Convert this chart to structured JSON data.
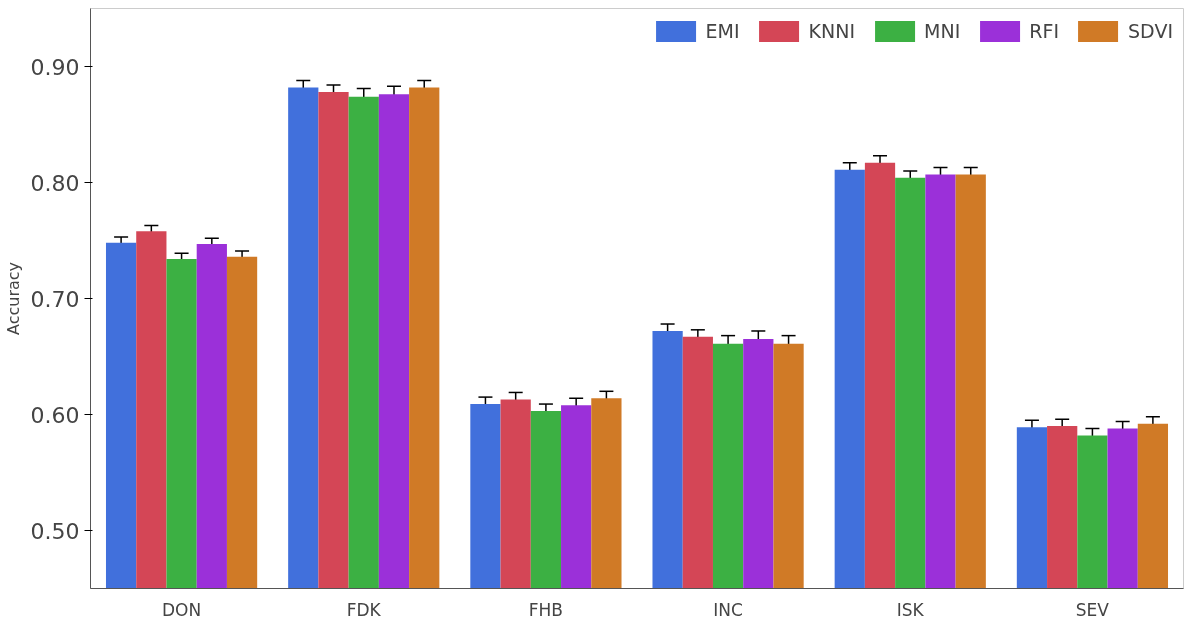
{
  "chart_data": {
    "type": "bar",
    "ylabel": "Accuracy",
    "categories": [
      "DON",
      "FDK",
      "FHB",
      "INC",
      "ISK",
      "SEV"
    ],
    "series": [
      {
        "name": "EMI",
        "color": "#4170dc",
        "values": [
          0.748,
          0.882,
          0.609,
          0.672,
          0.811,
          0.589
        ],
        "errors": [
          0.005,
          0.006,
          0.006,
          0.006,
          0.006,
          0.006
        ]
      },
      {
        "name": "KNNI",
        "color": "#d44656",
        "values": [
          0.758,
          0.878,
          0.613,
          0.667,
          0.817,
          0.59
        ],
        "errors": [
          0.005,
          0.006,
          0.006,
          0.006,
          0.006,
          0.006
        ]
      },
      {
        "name": "MNI",
        "color": "#3cb043",
        "values": [
          0.734,
          0.874,
          0.603,
          0.661,
          0.804,
          0.582
        ],
        "errors": [
          0.005,
          0.007,
          0.006,
          0.007,
          0.006,
          0.006
        ]
      },
      {
        "name": "RFI",
        "color": "#9b30d9",
        "values": [
          0.747,
          0.876,
          0.608,
          0.665,
          0.807,
          0.588
        ],
        "errors": [
          0.005,
          0.007,
          0.006,
          0.007,
          0.006,
          0.006
        ]
      },
      {
        "name": "SDVI",
        "color": "#d07a26",
        "values": [
          0.736,
          0.882,
          0.614,
          0.661,
          0.807,
          0.592
        ],
        "errors": [
          0.005,
          0.006,
          0.006,
          0.007,
          0.006,
          0.006
        ]
      }
    ],
    "ylim": [
      0.45,
      0.95
    ],
    "yticks": [
      {
        "value": 0.5,
        "label": "0.50"
      },
      {
        "value": 0.6,
        "label": "0.60"
      },
      {
        "value": 0.7,
        "label": "0.70"
      },
      {
        "value": 0.8,
        "label": "0.80"
      },
      {
        "value": 0.9,
        "label": "0.90"
      }
    ],
    "grid": false,
    "legend": "top right"
  }
}
